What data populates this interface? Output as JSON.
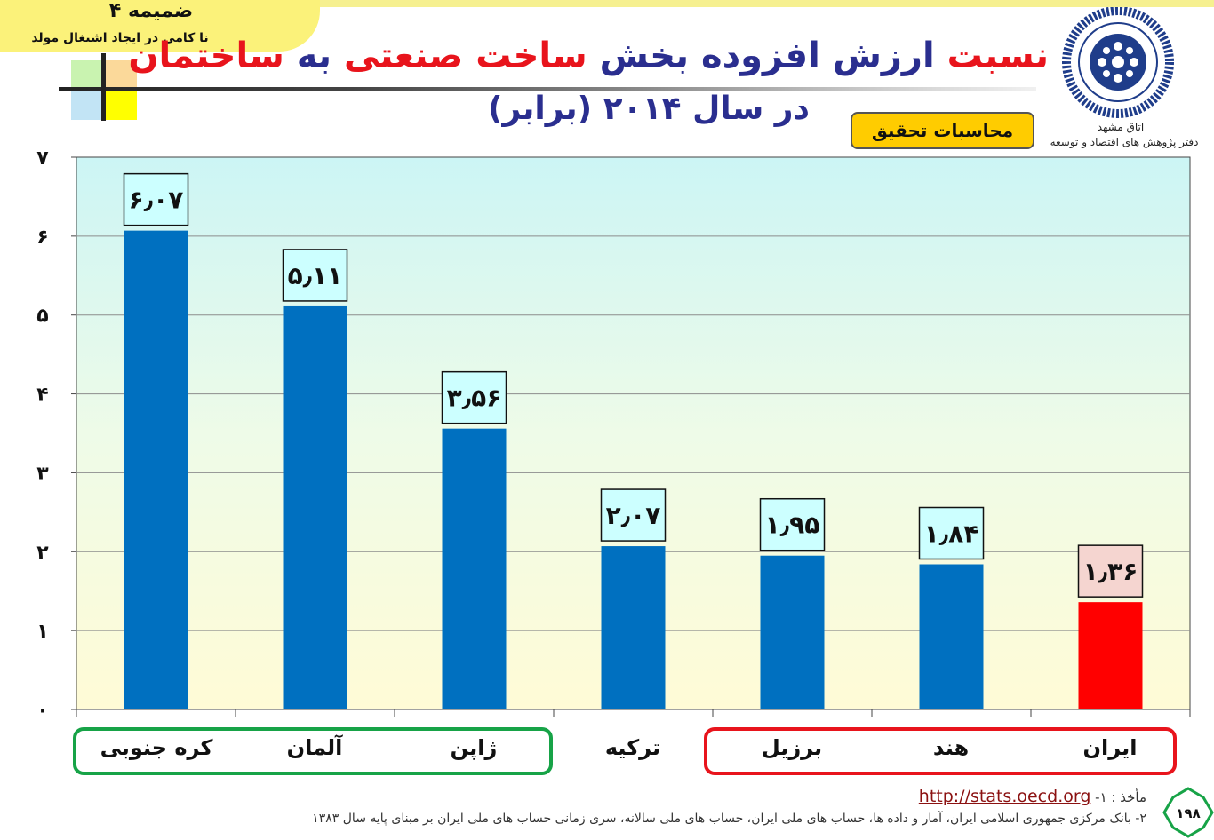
{
  "annex": {
    "title": "ضمیمه ۴",
    "subtitle": "نا کامی در ایجاد اشتغال مولد"
  },
  "title": {
    "line1_parts": [
      {
        "text": "نسبت ",
        "color": "red"
      },
      {
        "text": "ارزش افزوده بخش ",
        "color": "navy"
      },
      {
        "text": "ساخت صنعتی ",
        "color": "red"
      },
      {
        "text": "به ",
        "color": "navy"
      },
      {
        "text": "ساختمان",
        "color": "red"
      }
    ],
    "line2": "در سال ۲۰۱۴ (برابر)"
  },
  "badge": "محاسبات تحقیق",
  "org": {
    "line1": "اتاق مشهد",
    "line2": "دفتر پژوهش های اقتصاد و توسعه"
  },
  "colors": {
    "bar": "#0070c0",
    "bar_highlight": "#ff0000",
    "label_box": "#ccffff",
    "label_box_highlight": "#f5d5d0",
    "green_group": "#17a347",
    "red_group": "#e8141c",
    "title_red": "#e8141c",
    "title_navy": "#2a2e8f"
  },
  "chart_data": {
    "type": "bar",
    "categories": [
      "کره جنوبی",
      "آلمان",
      "ژاپن",
      "ترکیه",
      "برزیل",
      "هند",
      "ایران"
    ],
    "values": [
      6.07,
      5.11,
      3.56,
      2.07,
      1.95,
      1.84,
      1.36
    ],
    "value_labels": [
      "۶٫۰۷",
      "۵٫۱۱",
      "۳٫۵۶",
      "۲٫۰۷",
      "۱٫۹۵",
      "۱٫۸۴",
      "۱٫۳۶"
    ],
    "highlight_index": 6,
    "ylim": [
      0,
      7
    ],
    "yticks": [
      0,
      1,
      2,
      3,
      4,
      5,
      6,
      7
    ],
    "ytick_labels": [
      "٠",
      "١",
      "٢",
      "٣",
      "۴",
      "۵",
      "۶",
      "٧"
    ],
    "grid": true,
    "groups": [
      {
        "color": "green",
        "members": [
          "کره جنوبی",
          "آلمان",
          "ژاپن"
        ]
      },
      {
        "color": "red",
        "members": [
          "برزیل",
          "هند",
          "ایران"
        ]
      }
    ]
  },
  "source": {
    "prefix": "مأخذ : ١-",
    "link": "http://stats.oecd.org",
    "note": "٢- بانک مرکزی جمهوری اسلامی ایران، آمار و داده ها، حساب های ملی ایران، حساب های ملی سالانه، سری زمانی حساب های ملی ایران بر مبنای پایه سال ۱۳۸۳"
  },
  "page_number": "۱۹۸"
}
